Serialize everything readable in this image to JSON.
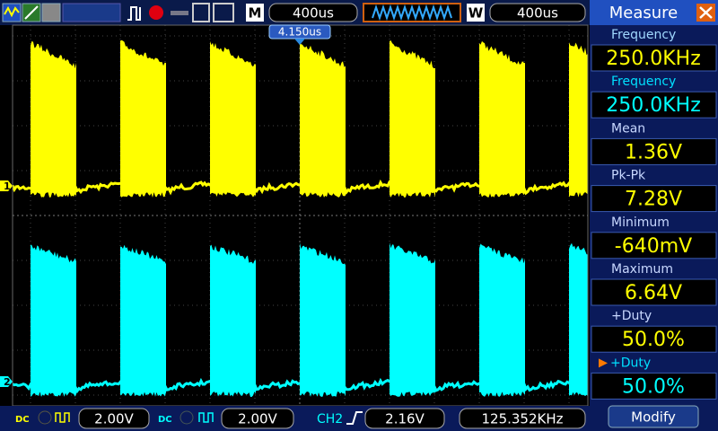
{
  "toolbar": {
    "timebase_label": "M",
    "timebase": "400us",
    "window_label": "W",
    "window": "400us"
  },
  "trigger_position": "4.150us",
  "channel_markers": [
    "1",
    "2"
  ],
  "measure": {
    "title": "Measure",
    "items": [
      {
        "label": "Frequency",
        "value": "250.0KHz"
      },
      {
        "label": "Frequency",
        "value": "250.0KHz"
      },
      {
        "label": "Mean",
        "value": "1.36V"
      },
      {
        "label": "Pk-Pk",
        "value": "7.28V"
      },
      {
        "label": "Minimum",
        "value": "-640mV"
      },
      {
        "label": "Maximum",
        "value": "6.64V"
      },
      {
        "label": "+Duty",
        "value": "50.0%"
      },
      {
        "label": "+Duty",
        "value": "50.0%"
      }
    ]
  },
  "status": {
    "ch1_coupling": "DC",
    "ch1_scale": "2.00V",
    "ch2_coupling": "DC",
    "ch2_scale": "2.00V",
    "trigger_source": "CH2",
    "trigger_level": "2.16V",
    "frequency": "125.352KHz"
  },
  "button": "Modify"
}
